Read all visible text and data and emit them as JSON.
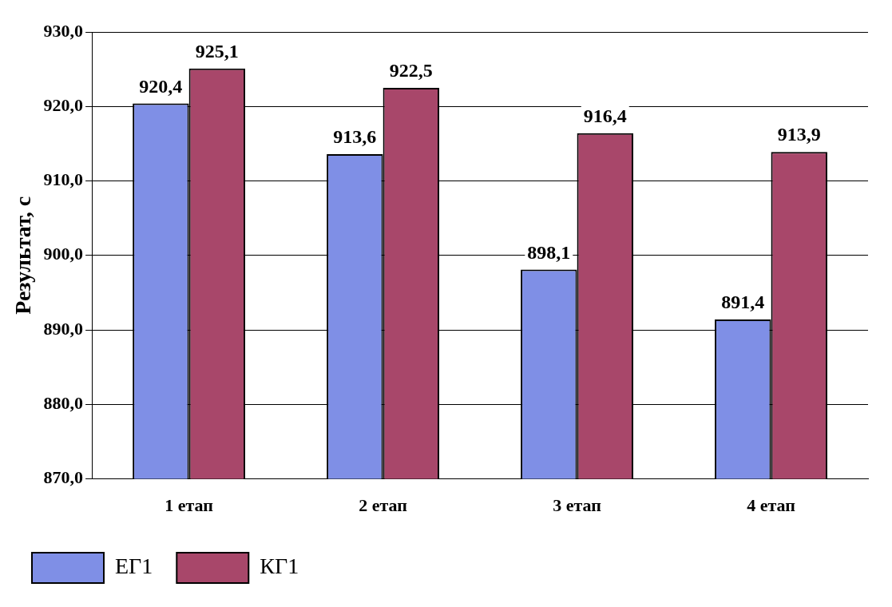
{
  "chart_data": {
    "type": "bar",
    "ylabel": "Результат, с",
    "categories": [
      "1 етап",
      "2 етап",
      "3 етап",
      "4 етап"
    ],
    "series": [
      {
        "name": "ЕГ1",
        "color": "#7f8fe6",
        "values": [
          920.4,
          913.6,
          898.1,
          891.4
        ],
        "value_labels": [
          "920,4",
          "913,6",
          "898,1",
          "891,4"
        ]
      },
      {
        "name": "КГ1",
        "color": "#a8476a",
        "values": [
          925.1,
          922.5,
          916.4,
          913.9
        ],
        "value_labels": [
          "925,1",
          "922,5",
          "916,4",
          "913,9"
        ]
      }
    ],
    "ylim": [
      870,
      930
    ],
    "yticks": [
      {
        "value": 870,
        "label": "870,0"
      },
      {
        "value": 880,
        "label": "880,0"
      },
      {
        "value": 890,
        "label": "890,0"
      },
      {
        "value": 900,
        "label": "900,0"
      },
      {
        "value": 910,
        "label": "910,0"
      },
      {
        "value": 920,
        "label": "920,0"
      },
      {
        "value": 930,
        "label": "930,0"
      }
    ],
    "grid": "y",
    "legend": "bottom left"
  }
}
